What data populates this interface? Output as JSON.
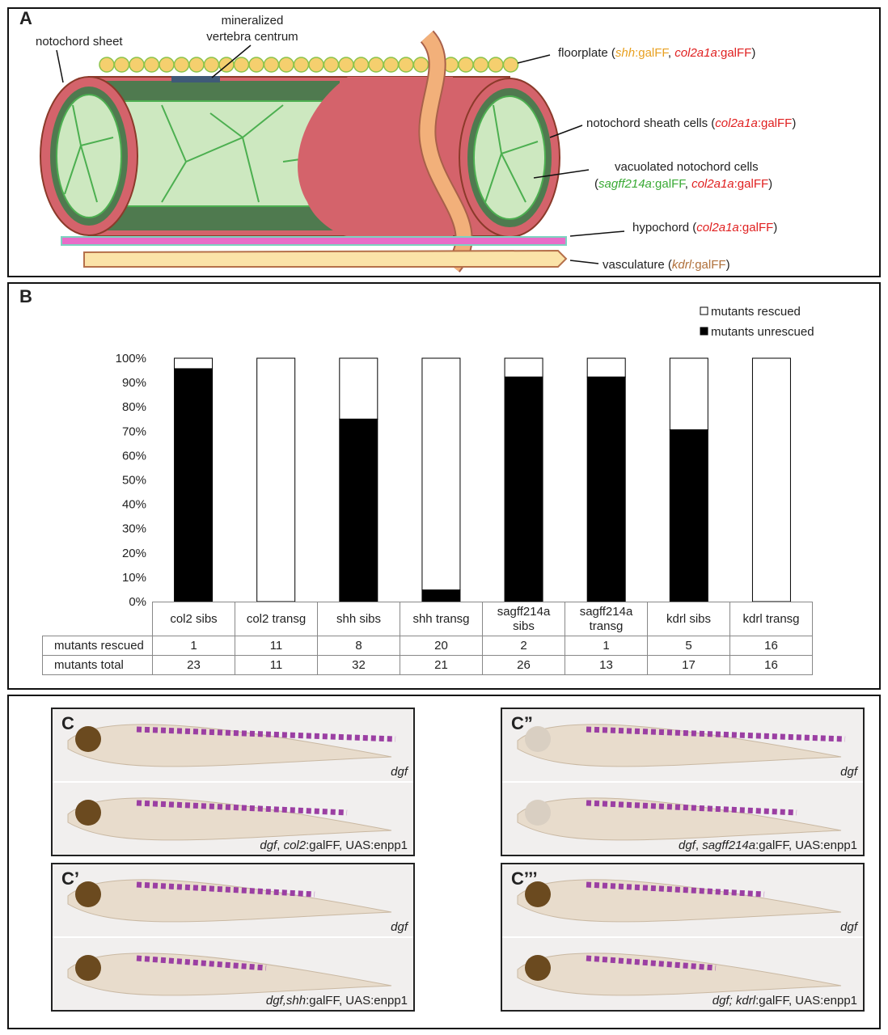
{
  "panel_a": {
    "label": "A",
    "notochord_sheet": "notochord sheet",
    "centrum": [
      "mineralized",
      "vertebra centrum"
    ],
    "floorplate": [
      "floorplate (",
      "shh",
      ":galFF",
      ", ",
      "col2a1a",
      ":galFF",
      ")"
    ],
    "sheath": [
      "notochord sheath cells (",
      "col2a1a",
      ":galFF",
      ")"
    ],
    "vacuolated": [
      "vacuolated notochord cells",
      "(",
      "sagff214a",
      ":galFF",
      ", ",
      "col2a1a",
      ":galFF",
      ")"
    ],
    "hypochord": [
      "hypochord (",
      "col2a1a",
      ":galFF",
      ")"
    ],
    "vasculature": [
      "vasculature (",
      "kdrl",
      ":galFF",
      ")"
    ]
  },
  "chart_data": {
    "type": "stacked_bar",
    "label": "B",
    "categories": [
      "col2 sibs",
      "col2 transg",
      "shh sibs",
      "shh transg",
      "sagff214a sibs",
      "sagff214a transg",
      "kdrl sibs",
      "kdrl transg"
    ],
    "series": [
      {
        "name": "mutants rescued",
        "color": "#ffffff",
        "values": [
          4.3,
          100,
          25,
          95.2,
          7.7,
          7.7,
          29.4,
          100
        ]
      },
      {
        "name": "mutants unrescued",
        "color": "#000000",
        "values": [
          95.7,
          0,
          75,
          4.8,
          92.3,
          92.3,
          70.6,
          0
        ]
      }
    ],
    "ylim": [
      0,
      100
    ],
    "yticks": [
      {
        "value": 0,
        "label": "0%"
      },
      {
        "value": 10,
        "label": "10%"
      },
      {
        "value": 20,
        "label": "20%"
      },
      {
        "value": 30,
        "label": "30%"
      },
      {
        "value": 40,
        "label": "40%"
      },
      {
        "value": 50,
        "label": "50%"
      },
      {
        "value": 60,
        "label": "60%"
      },
      {
        "value": 70,
        "label": "70%"
      },
      {
        "value": 80,
        "label": "80%"
      },
      {
        "value": 90,
        "label": "90%"
      },
      {
        "value": 100,
        "label": "100%"
      }
    ],
    "legend": "top-right",
    "table": {
      "rows": [
        {
          "name": "mutants rescued",
          "values": [
            1,
            11,
            8,
            20,
            2,
            1,
            5,
            16
          ]
        },
        {
          "name": "mutants total",
          "values": [
            23,
            11,
            32,
            21,
            26,
            13,
            17,
            16
          ]
        }
      ]
    }
  },
  "panel_c": {
    "panels": [
      {
        "label": "C",
        "top_caption": [
          "dgf"
        ],
        "bottom_caption": [
          "dgf",
          ", ",
          "col2",
          ":galFF, UAS:enpp1"
        ]
      },
      {
        "label": "C’",
        "top_caption": [
          "dgf"
        ],
        "bottom_caption": [
          "dgf,shh",
          ":galFF, UAS:enpp1"
        ]
      },
      {
        "label": "C”",
        "top_caption": [
          "dgf"
        ],
        "bottom_caption": [
          "dgf",
          ", ",
          "sagff214a",
          ":galFF, UAS:enpp1"
        ]
      },
      {
        "label": "C’’’",
        "top_caption": [
          "dgf"
        ],
        "bottom_caption": [
          "dgf; kdrl",
          ":galFF, UAS:enpp1"
        ]
      }
    ]
  }
}
